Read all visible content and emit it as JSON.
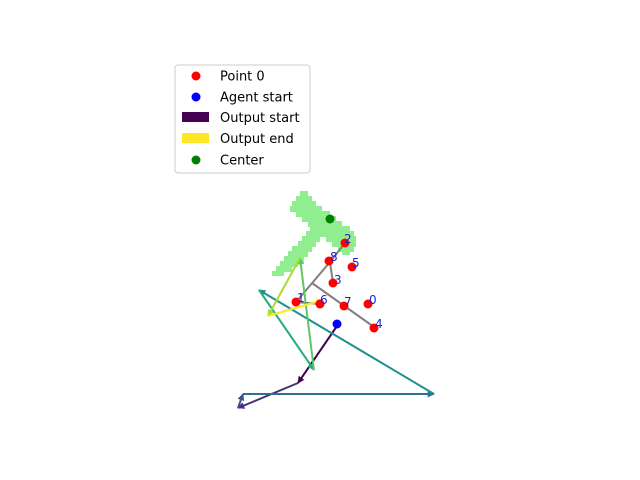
{
  "legend": {
    "items": [
      {
        "kind": "dot",
        "color": "#ff0000",
        "label": "Point 0"
      },
      {
        "kind": "dot",
        "color": "#0000ff",
        "label": "Agent start"
      },
      {
        "kind": "swatch",
        "color": "#440154",
        "label": "Output start"
      },
      {
        "kind": "swatch",
        "color": "#fde725",
        "label": "Output end"
      },
      {
        "kind": "dot",
        "color": "#008000",
        "label": "Center"
      }
    ]
  },
  "colors": {
    "shape_fill": "#90ee90",
    "tree_edges": "#808080",
    "point": "#ff0000",
    "point_label": "#1f1fd0",
    "agent_start": "#0000ff",
    "center": "#008000"
  },
  "points": [
    {
      "label": "0"
    },
    {
      "label": "1"
    },
    {
      "label": "2"
    },
    {
      "label": "3"
    },
    {
      "label": "4"
    },
    {
      "label": "5"
    },
    {
      "label": "6"
    },
    {
      "label": "7"
    },
    {
      "label": "8"
    }
  ],
  "path_colormap": "viridis"
}
